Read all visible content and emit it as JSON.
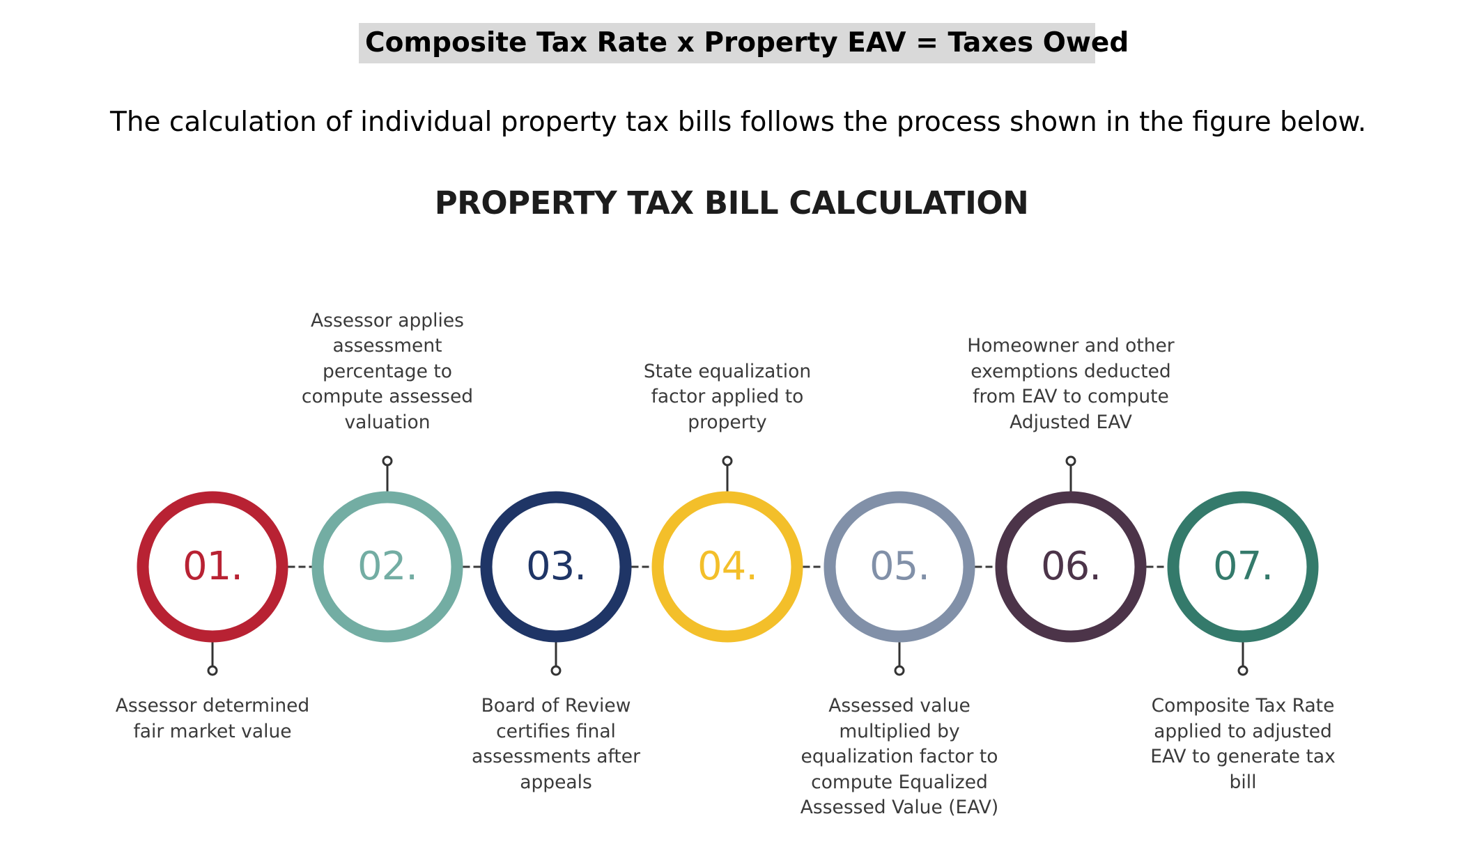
{
  "formula": "Composite Tax Rate x Property EAV = Taxes Owed",
  "intro": "The calculation of individual property tax bills follows the process shown in the figure below.",
  "diagram": {
    "title": "PROPERTY TAX BILL CALCULATION",
    "steps": [
      {
        "number": "01.",
        "color": "#b82233",
        "caption": "Assessor determined fair market value",
        "caption_position": "below"
      },
      {
        "number": "02.",
        "color": "#73ada3",
        "caption": "Assessor applies assessment percentage to compute assessed valuation",
        "caption_position": "above"
      },
      {
        "number": "03.",
        "color": "#1f3566",
        "caption": "Board of Review certifies final assessments after appeals",
        "caption_position": "below"
      },
      {
        "number": "04.",
        "color": "#f3bf2a",
        "caption": "State equalization factor applied to property",
        "caption_position": "above"
      },
      {
        "number": "05.",
        "color": "#8190a8",
        "caption": "Assessed value multiplied by equalization factor to compute Equalized Assessed Value (EAV)",
        "caption_position": "below"
      },
      {
        "number": "06.",
        "color": "#4c3449",
        "caption": "Homeowner and other exemptions deducted from EAV to compute Adjusted EAV",
        "caption_position": "above"
      },
      {
        "number": "07.",
        "color": "#347a6b",
        "caption": "Composite Tax Rate applied to adjusted EAV to generate tax bill",
        "caption_position": "below"
      }
    ]
  }
}
